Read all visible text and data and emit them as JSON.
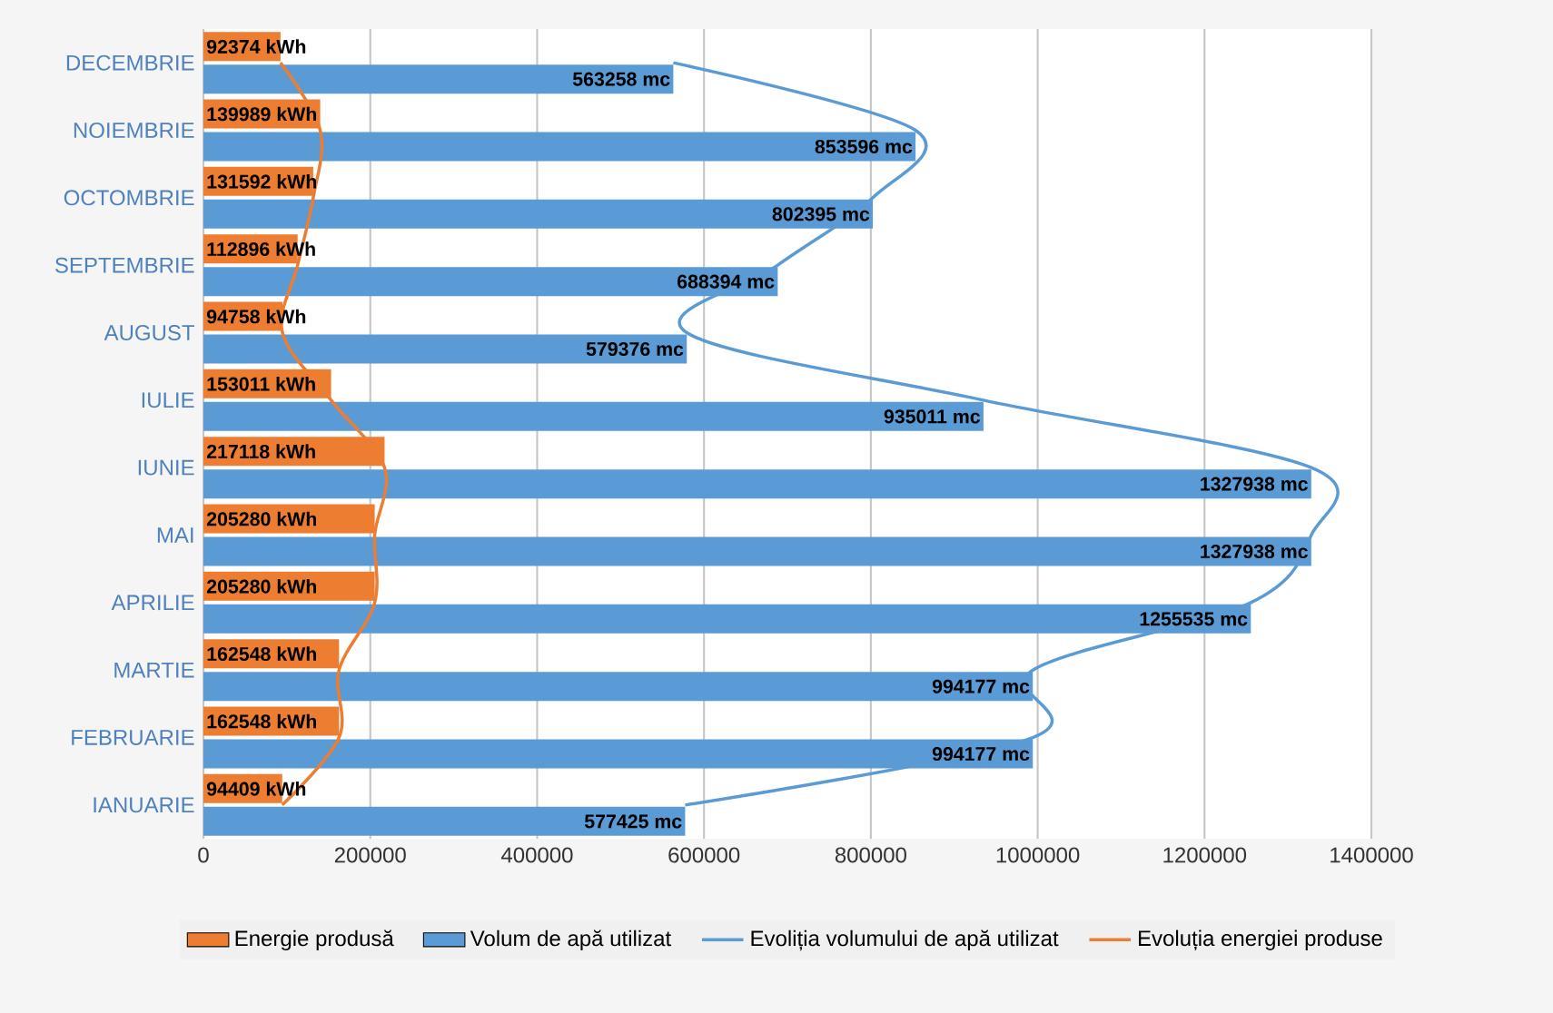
{
  "chart_data": {
    "type": "bar",
    "orientation": "horizontal",
    "categories": [
      "DECEMBRIE",
      "NOIEMBRIE",
      "OCTOMBRIE",
      "SEPTEMBRIE",
      "AUGUST",
      "IULIE",
      "IUNIE",
      "MAI",
      "APRILIE",
      "MARTIE",
      "FEBRUARIE",
      "IANUARIE"
    ],
    "series": [
      {
        "name": "Energie produsă",
        "color": "#ed7d31",
        "values": [
          92374,
          139989,
          131592,
          112896,
          94758,
          153011,
          217118,
          205280,
          205280,
          162548,
          162548,
          94409
        ],
        "value_labels": [
          "92374 kWh",
          "139989 kWh",
          "131592 kWh",
          "112896 kWh",
          "94758 kWh",
          "153011 kWh",
          "217118 kWh",
          "205280 kWh",
          "205280 kWh",
          "162548 kWh",
          "162548 kWh",
          "94409 kWh"
        ]
      },
      {
        "name": "Volum de apă utilizat",
        "color": "#5b9bd5",
        "values": [
          563258,
          853596,
          802395,
          688394,
          579376,
          935011,
          1327938,
          1327938,
          1255535,
          994177,
          994177,
          577425
        ],
        "value_labels": [
          "563258 mc",
          "853596 mc",
          "802395 mc",
          "688394 mc",
          "579376 mc",
          "935011 mc",
          "1327938 mc",
          "1327938 mc",
          "1255535 mc",
          "994177 mc",
          "994177 mc",
          "577425 mc"
        ]
      },
      {
        "name": "Evoliția volumului de apă utilizat",
        "type": "line",
        "color": "#5b9bd5",
        "values": [
          563258,
          853596,
          802395,
          688394,
          579376,
          935011,
          1327938,
          1327938,
          1255535,
          994177,
          994177,
          577425
        ]
      },
      {
        "name": "Evoluția energiei produse",
        "type": "line",
        "color": "#ed7d31",
        "values": [
          92374,
          139989,
          131592,
          112896,
          94758,
          153011,
          217118,
          205280,
          205280,
          162548,
          162548,
          94409
        ]
      }
    ],
    "xlim": [
      0,
      1400000
    ],
    "xticks": [
      0,
      200000,
      400000,
      600000,
      800000,
      1000000,
      1200000,
      1400000
    ],
    "grid": "x",
    "legend": "bottom"
  }
}
